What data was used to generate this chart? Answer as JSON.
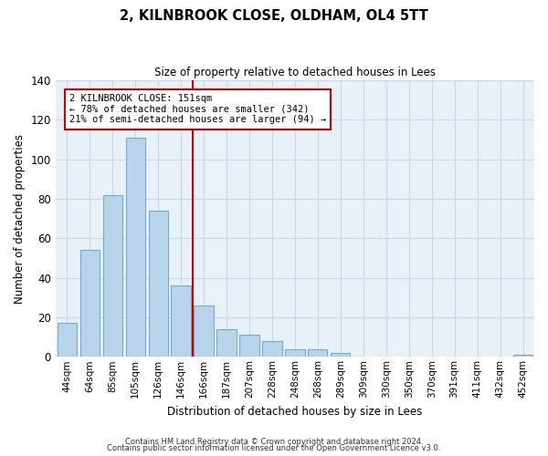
{
  "title": "2, KILNBROOK CLOSE, OLDHAM, OL4 5TT",
  "subtitle": "Size of property relative to detached houses in Lees",
  "xlabel": "Distribution of detached houses by size in Lees",
  "ylabel": "Number of detached properties",
  "bar_labels": [
    "44sqm",
    "64sqm",
    "85sqm",
    "105sqm",
    "126sqm",
    "146sqm",
    "166sqm",
    "187sqm",
    "207sqm",
    "228sqm",
    "248sqm",
    "268sqm",
    "289sqm",
    "309sqm",
    "330sqm",
    "350sqm",
    "370sqm",
    "391sqm",
    "411sqm",
    "432sqm",
    "452sqm"
  ],
  "bar_values": [
    17,
    54,
    82,
    111,
    74,
    36,
    26,
    14,
    11,
    8,
    4,
    4,
    2,
    0,
    0,
    0,
    0,
    0,
    0,
    0,
    1
  ],
  "bar_color": "#b8d4ea",
  "bar_edge_color": "#7aaac8",
  "vline_x": 5.5,
  "vline_color": "#cc0000",
  "annotation_line1": "2 KILNBROOK CLOSE: 151sqm",
  "annotation_line2": "← 78% of detached houses are smaller (342)",
  "annotation_line3": "21% of semi-detached houses are larger (94) →",
  "annotation_box_color": "#ffffff",
  "annotation_box_edge": "#cc0000",
  "ylim": [
    0,
    140
  ],
  "yticks": [
    0,
    20,
    40,
    60,
    80,
    100,
    120,
    140
  ],
  "footer1": "Contains HM Land Registry data © Crown copyright and database right 2024.",
  "footer2": "Contains public sector information licensed under the Open Government Licence v3.0.",
  "background_color": "#ffffff",
  "plot_bg_color": "#e8f0f8",
  "grid_color": "#c8d8e8"
}
